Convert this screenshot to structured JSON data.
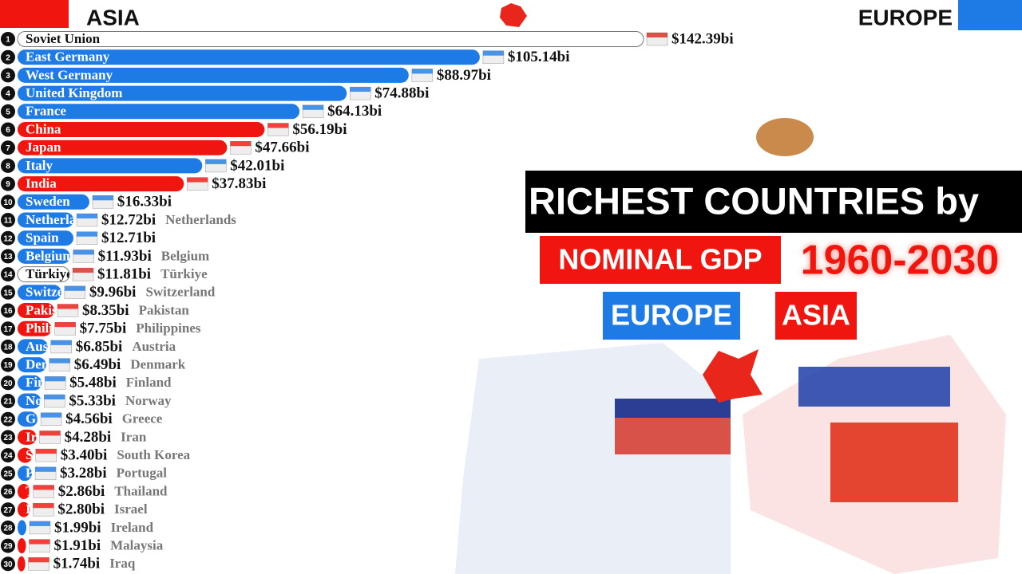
{
  "chart_data": {
    "type": "bar",
    "header_left": "ASIA",
    "header_right": "EUROPE",
    "title": "RICHEST COUNTRIES by",
    "subtitle": "NOMINAL GDP",
    "period": "1960-2030",
    "legend": [
      {
        "name": "EUROPE",
        "color": "#1e7be6"
      },
      {
        "name": "ASIA",
        "color": "#f0150f"
      }
    ],
    "ranks": [
      1,
      2,
      3,
      4,
      5,
      6,
      7,
      8,
      9,
      10,
      11,
      12,
      13,
      14,
      15,
      16,
      17,
      18,
      19,
      20,
      21,
      22,
      23,
      24,
      25,
      26,
      27,
      28,
      29,
      30
    ],
    "categories": [
      "Soviet Union",
      "East Germany",
      "West Germany",
      "United Kingdom",
      "France",
      "China",
      "Japan",
      "Italy",
      "India",
      "Sweden",
      "Netherlands",
      "Spain",
      "Belgium",
      "Türkiye",
      "Switzerland",
      "Pakistan",
      "Philippines",
      "Austria",
      "Denmark",
      "Finland",
      "Norway",
      "Greece",
      "Iran",
      "South Korea",
      "Portugal",
      "Thailand",
      "Israel",
      "Ireland",
      "Malaysia",
      "Iraq"
    ],
    "values": [
      142.39,
      105.14,
      88.97,
      74.88,
      64.13,
      56.19,
      47.66,
      42.01,
      37.83,
      16.33,
      12.72,
      12.71,
      11.93,
      11.81,
      9.96,
      8.35,
      7.75,
      6.85,
      6.49,
      5.48,
      5.33,
      4.56,
      4.28,
      3.4,
      3.28,
      2.86,
      2.8,
      1.99,
      1.91,
      1.74
    ],
    "value_labels": [
      "$142.39bi",
      "$105.14bi",
      "$88.97bi",
      "$74.88bi",
      "$64.13bi",
      "$56.19bi",
      "$47.66bi",
      "$42.01bi",
      "$37.83bi",
      "$16.33bi",
      "$12.72bi",
      "$12.71bi",
      "$11.93bi",
      "$11.81bi",
      "$9.96bi",
      "$8.35bi",
      "$7.75bi",
      "$6.85bi",
      "$6.49bi",
      "$5.48bi",
      "$5.33bi",
      "$4.56bi",
      "$4.28bi",
      "$3.40bi",
      "$3.28bi",
      "$2.86bi",
      "$2.80bi",
      "$1.99bi",
      "$1.91bi",
      "$1.74bi"
    ],
    "colors": [
      "#ffffff",
      "#1e7be6",
      "#1e7be6",
      "#1e7be6",
      "#1e7be6",
      "#f0150f",
      "#f0150f",
      "#1e7be6",
      "#f0150f",
      "#1e7be6",
      "#1e7be6",
      "#1e7be6",
      "#1e7be6",
      "#ffffff",
      "#1e7be6",
      "#f0150f",
      "#f0150f",
      "#1e7be6",
      "#1e7be6",
      "#1e7be6",
      "#1e7be6",
      "#1e7be6",
      "#f0150f",
      "#f0150f",
      "#1e7be6",
      "#f0150f",
      "#f0150f",
      "#1e7be6",
      "#f0150f",
      "#f0150f"
    ]
  }
}
